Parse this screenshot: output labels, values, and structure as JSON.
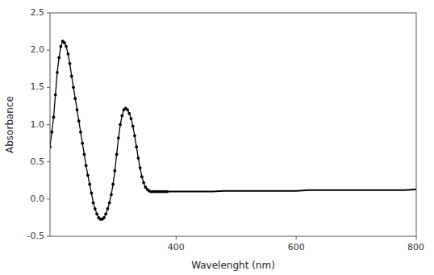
{
  "chart_data": {
    "type": "line",
    "title": "",
    "xlabel": "Wavelenght (nm)",
    "ylabel": "Absorbance",
    "x": [
      190,
      193,
      196,
      199,
      202,
      205,
      208,
      211,
      214,
      217,
      220,
      223,
      226,
      229,
      232,
      235,
      238,
      241,
      244,
      247,
      250,
      253,
      256,
      259,
      262,
      265,
      268,
      271,
      274,
      277,
      280,
      283,
      286,
      289,
      292,
      295,
      298,
      301,
      304,
      307,
      310,
      313,
      316,
      319,
      322,
      325,
      328,
      331,
      334,
      337,
      340,
      343,
      346,
      349,
      352,
      355,
      358,
      361,
      364,
      367,
      370,
      373,
      376,
      379,
      382,
      385,
      390,
      400,
      420,
      440,
      460,
      480,
      500,
      520,
      540,
      560,
      580,
      600,
      620,
      640,
      660,
      680,
      700,
      720,
      740,
      760,
      780,
      800
    ],
    "series": [
      {
        "color": "#000000",
        "marker": "o",
        "line_style": "solid",
        "values": [
          0.7,
          0.9,
          1.1,
          1.4,
          1.7,
          1.9,
          2.05,
          2.12,
          2.1,
          2.05,
          1.95,
          1.82,
          1.65,
          1.5,
          1.35,
          1.2,
          1.05,
          0.9,
          0.75,
          0.6,
          0.45,
          0.32,
          0.2,
          0.08,
          -0.05,
          -0.13,
          -0.2,
          -0.25,
          -0.27,
          -0.27,
          -0.25,
          -0.2,
          -0.13,
          -0.05,
          0.06,
          0.2,
          0.38,
          0.6,
          0.82,
          1.0,
          1.12,
          1.2,
          1.22,
          1.2,
          1.15,
          1.08,
          0.98,
          0.85,
          0.7,
          0.55,
          0.42,
          0.3,
          0.22,
          0.16,
          0.13,
          0.11,
          0.1,
          0.1,
          0.1,
          0.1,
          0.1,
          0.1,
          0.1,
          0.1,
          0.1,
          0.1,
          null,
          null,
          null,
          null,
          null,
          null,
          null,
          null,
          null,
          null,
          null,
          null,
          null,
          null,
          null,
          null,
          null,
          null,
          null,
          null,
          null,
          null
        ]
      },
      {
        "color": "#000000",
        "marker": "none",
        "line_style": "solid",
        "values": [
          null,
          null,
          null,
          null,
          null,
          null,
          null,
          null,
          null,
          null,
          null,
          null,
          null,
          null,
          null,
          null,
          null,
          null,
          null,
          null,
          null,
          null,
          null,
          null,
          null,
          null,
          null,
          null,
          null,
          null,
          null,
          null,
          null,
          null,
          null,
          null,
          null,
          null,
          null,
          null,
          null,
          null,
          null,
          null,
          null,
          null,
          null,
          null,
          null,
          null,
          null,
          null,
          null,
          null,
          null,
          null,
          null,
          null,
          null,
          null,
          null,
          null,
          null,
          null,
          null,
          0.1,
          0.1,
          0.1,
          0.1,
          0.1,
          0.1,
          0.11,
          0.11,
          0.11,
          0.11,
          0.11,
          0.11,
          0.11,
          0.12,
          0.12,
          0.12,
          0.12,
          0.12,
          0.12,
          0.12,
          0.12,
          0.12,
          0.13
        ]
      }
    ],
    "xlim": [
      190,
      800
    ],
    "ylim": [
      -0.5,
      2.5
    ],
    "xticks": [
      400,
      600,
      800
    ],
    "yticks": [
      -0.5,
      {
        "value": 0.0,
        "label": "0.0"
      },
      0.5,
      {
        "value": 1.0,
        "label": "1.0"
      },
      1.5,
      {
        "value": 2.0,
        "label": "2.0"
      },
      2.5
    ],
    "grid": false
  }
}
